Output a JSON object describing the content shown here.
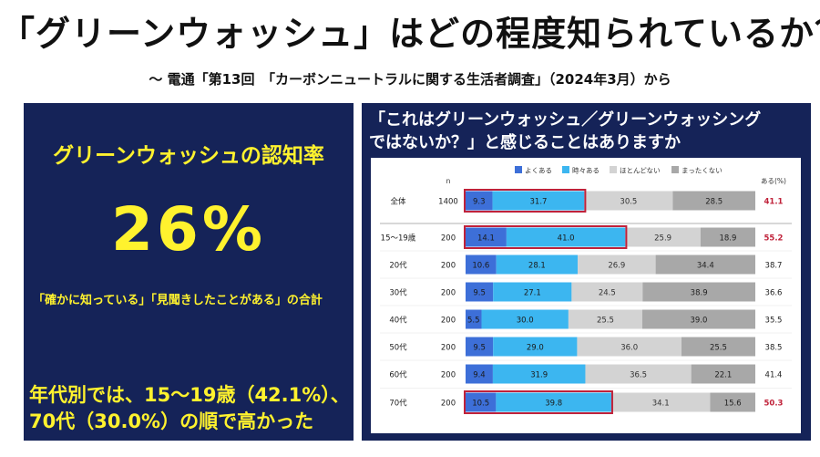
{
  "page": {
    "title": "「グリーンウォッシュ」はどの程度知られているか？",
    "subtitle": "～ 電通「第13回　「カーボンニュートラルに関する生活者調査」（2024年3月）から"
  },
  "left_panel": {
    "heading": "グリーンウォッシュの認知率",
    "big_value": "26%",
    "note": "「確かに知っている」「見聞きしたことがある」の合計",
    "bottom_line1": "年代別では、15～19歳（42.1%）、",
    "bottom_line2": "70代（30.0%）の順で高かった"
  },
  "right_panel": {
    "question_line1": "「これはグリーンウォッシュ／グリーンウォッシング",
    "question_line2": "ではないか？」と感じることはありますか"
  },
  "colors": {
    "often": "#3d6fd8",
    "sometimes": "#3cb6f0",
    "rarely": "#d3d3d3",
    "never": "#a8a8a8",
    "highlight": "#c0223a",
    "panel_bg": "#152358",
    "accent_text": "#fff22e"
  },
  "chart_data": {
    "type": "bar",
    "orientation": "horizontal",
    "stacked": true,
    "percent_scale": true,
    "n_header": "n",
    "aru_header": "ある(%)",
    "legend": [
      "よくある",
      "時々ある",
      "ほとんどない",
      "まったくない"
    ],
    "categories": [
      "全体",
      "15～19歳",
      "20代",
      "30代",
      "40代",
      "50代",
      "60代",
      "70代"
    ],
    "n": [
      1400,
      200,
      200,
      200,
      200,
      200,
      200,
      200
    ],
    "series": [
      {
        "name": "よくある",
        "values": [
          9.3,
          14.1,
          10.6,
          9.5,
          5.5,
          9.5,
          9.4,
          10.5
        ]
      },
      {
        "name": "時々ある",
        "values": [
          31.7,
          41.0,
          28.1,
          27.1,
          30.0,
          29.0,
          31.9,
          39.8
        ]
      },
      {
        "name": "ほとんどない",
        "values": [
          30.5,
          25.9,
          26.9,
          24.5,
          25.5,
          36.0,
          36.5,
          34.1
        ]
      },
      {
        "name": "まったくない",
        "values": [
          28.5,
          18.9,
          34.4,
          38.9,
          39.0,
          25.5,
          22.1,
          15.6
        ]
      }
    ],
    "aru_total": [
      41.1,
      55.2,
      38.7,
      36.6,
      35.5,
      38.5,
      41.4,
      50.3
    ],
    "highlighted_rows": [
      "全体",
      "15～19歳",
      "70代"
    ]
  }
}
